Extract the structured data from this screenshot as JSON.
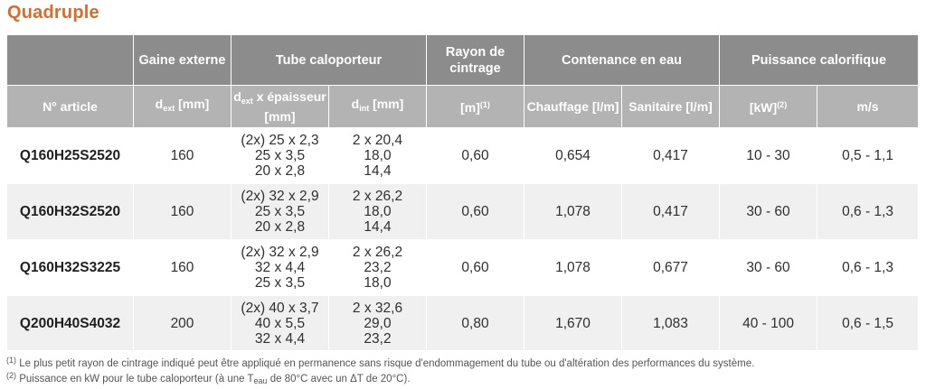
{
  "title": "Quadruple",
  "header": {
    "gaine": "Gaine externe",
    "tube": "Tube caloporteur",
    "rayon": "Rayon de cintrage",
    "contenance": "Contenance en eau",
    "puissance": "Puissance calorifique"
  },
  "subheader": {
    "article": "N° article",
    "d_letter": "d",
    "ext_sub": "ext",
    "int_sub": "int",
    "dext_unit": " [mm]",
    "epaisseur": " x épaisseur [mm]",
    "dint_unit": " [mm]",
    "m_unit": "[m]",
    "m_sup": "(1)",
    "chauffage": "Chauffage [l/m]",
    "sanitaire": "Sanitaire [l/m]",
    "kw_unit": "[kW]",
    "kw_sup": "(2)",
    "ms": "m/s"
  },
  "rows": [
    {
      "article": "Q160H25S2520",
      "dext": "160",
      "tube_dims": [
        "(2x) 25 x 2,3",
        "25 x 3,5",
        "20 x 2,8"
      ],
      "dint": [
        "2 x 20,4",
        "18,0",
        "14,4"
      ],
      "rayon": "0,60",
      "chauffage": "0,654",
      "sanitaire": "0,417",
      "kw": "10 - 30",
      "ms": "0,5 - 1,1"
    },
    {
      "article": "Q160H32S2520",
      "dext": "160",
      "tube_dims": [
        "(2x) 32 x 2,9",
        "25 x 3,5",
        "20 x 2,8"
      ],
      "dint": [
        "2 x 26,2",
        "18,0",
        "14,4"
      ],
      "rayon": "0,60",
      "chauffage": "1,078",
      "sanitaire": "0,417",
      "kw": "30 - 60",
      "ms": "0,6 - 1,3"
    },
    {
      "article": "Q160H32S3225",
      "dext": "160",
      "tube_dims": [
        "(2x) 32 x 2,9",
        "32 x 4,4",
        "25 x 3,5"
      ],
      "dint": [
        "2 x 26,2",
        "23,2",
        "18,0"
      ],
      "rayon": "0,60",
      "chauffage": "1,078",
      "sanitaire": "0,677",
      "kw": "30 - 60",
      "ms": "0,6 - 1,3"
    },
    {
      "article": "Q200H40S4032",
      "dext": "200",
      "tube_dims": [
        "(2x) 40 x 3,7",
        "40 x 5,5",
        "32 x 4,4"
      ],
      "dint": [
        "2 x 32,6",
        "29,0",
        "23,2"
      ],
      "rayon": "0,80",
      "chauffage": "1,670",
      "sanitaire": "1,083",
      "kw": "40 - 100",
      "ms": "0,6 - 1,5"
    }
  ],
  "footnotes": {
    "n1_mark": "(1)",
    "n1_text": " Le plus petit rayon de cintrage indiqué peut être appliqué en permanence sans risque d'endommagement du tube ou d'altération des performances du système.",
    "n2_mark": "(2)",
    "n2_text_a": " Puissance en kW pour le tube caloporteur (à une T",
    "n2_sub": "eau",
    "n2_text_b": " de 80°C avec un ΔT de 20°C)."
  }
}
